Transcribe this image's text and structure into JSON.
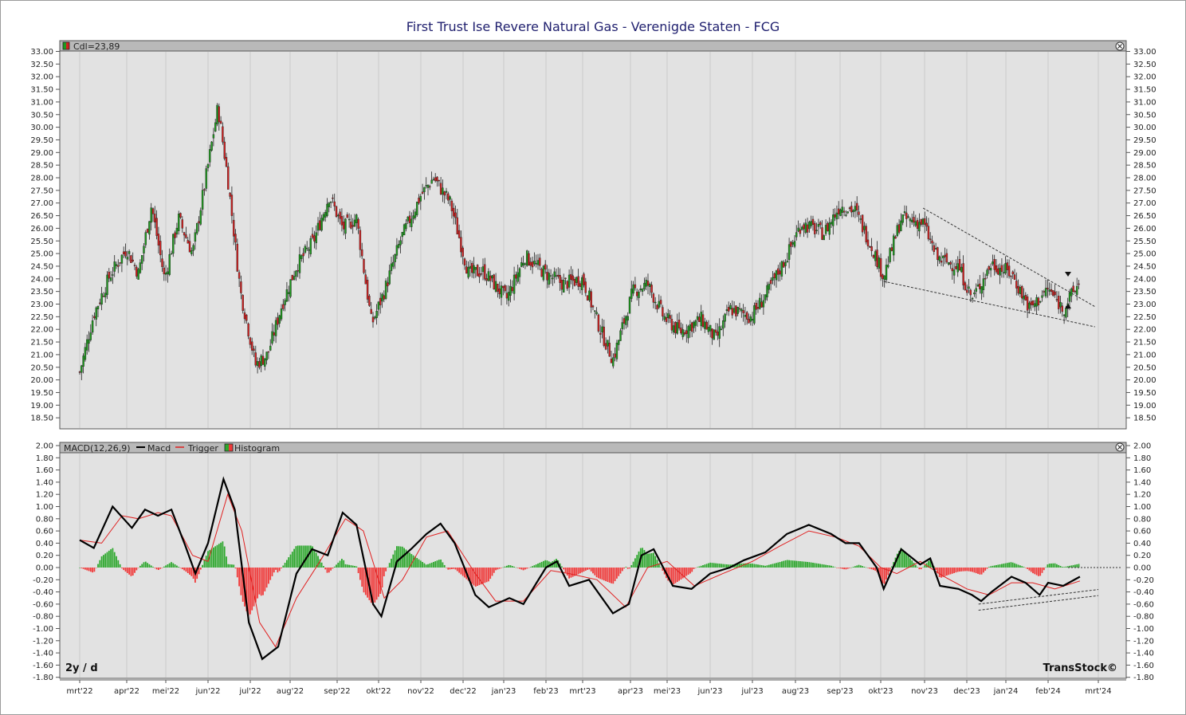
{
  "window": {
    "title": "First Trust Ise Revere Natural Gas - Verenigde Staten - FCG"
  },
  "price_panel": {
    "legend": "Cdl=23,89",
    "close_icon": "close-circle-icon"
  },
  "macd_panel": {
    "legend_prefix": "MACD(12,26,9)",
    "legend_macd": "Macd",
    "legend_trigger": "Trigger",
    "legend_histogram": "Histogram",
    "period_label": "2y / d",
    "brand": "TransStock©",
    "close_icon": "close-circle-icon"
  },
  "colors": {
    "title": "#1f1f6e",
    "panel_bg": "#e2e2e2",
    "grid": "#c8c8c8",
    "up": "#1e9a1e",
    "down": "#d22020",
    "macd": "#000000",
    "trigger": "#e02020",
    "hist_up": "#2ea82e",
    "hist_down": "#f03a3a"
  },
  "chart_data": [
    {
      "type": "candlestick",
      "title": "First Trust Ise Revere Natural Gas - Verenigde Staten - FCG",
      "x_ticks": [
        "mrt'22",
        "apr'22",
        "mei'22",
        "jun'22",
        "jul'22",
        "aug'22",
        "sep'22",
        "okt'22",
        "nov'22",
        "dec'22",
        "jan'23",
        "feb'23",
        "mrt'23",
        "apr'23",
        "mei'23",
        "jun'23",
        "jul'23",
        "aug'23",
        "sep'23",
        "okt'23",
        "nov'23",
        "dec'23",
        "jan'24",
        "feb'24",
        "mrt'24"
      ],
      "y_ticks": [
        "33.00",
        "32.50",
        "32.00",
        "31.50",
        "31.00",
        "30.50",
        "30.00",
        "29.50",
        "29.00",
        "28.50",
        "28.00",
        "27.50",
        "27.00",
        "26.50",
        "26.00",
        "25.50",
        "25.00",
        "24.50",
        "24.00",
        "23.50",
        "23.00",
        "22.50",
        "22.00",
        "21.50",
        "21.00",
        "20.50",
        "20.00",
        "19.50",
        "19.00",
        "18.50"
      ],
      "ylim": [
        18.0,
        33.25
      ],
      "last_close": 23.89,
      "approx_closes_by_month": [
        {
          "date": "2022-03-01",
          "close": 20.3
        },
        {
          "date": "2022-03-10",
          "close": 22.6
        },
        {
          "date": "2022-03-20",
          "close": 24.1
        },
        {
          "date": "2022-03-31",
          "close": 25.2
        },
        {
          "date": "2022-04-10",
          "close": 24.2
        },
        {
          "date": "2022-04-20",
          "close": 26.9
        },
        {
          "date": "2022-04-30",
          "close": 24.0
        },
        {
          "date": "2022-05-10",
          "close": 26.4
        },
        {
          "date": "2022-05-20",
          "close": 25.0
        },
        {
          "date": "2022-05-31",
          "close": 28.5
        },
        {
          "date": "2022-06-08",
          "close": 30.8
        },
        {
          "date": "2022-06-15",
          "close": 28.0
        },
        {
          "date": "2022-06-24",
          "close": 23.5
        },
        {
          "date": "2022-07-05",
          "close": 20.6
        },
        {
          "date": "2022-07-14",
          "close": 21.0
        },
        {
          "date": "2022-07-25",
          "close": 23.0
        },
        {
          "date": "2022-08-05",
          "close": 24.5
        },
        {
          "date": "2022-08-16",
          "close": 25.5
        },
        {
          "date": "2022-08-26",
          "close": 27.3
        },
        {
          "date": "2022-09-05",
          "close": 26.0
        },
        {
          "date": "2022-09-15",
          "close": 26.4
        },
        {
          "date": "2022-09-26",
          "close": 22.2
        },
        {
          "date": "2022-10-05",
          "close": 23.5
        },
        {
          "date": "2022-10-17",
          "close": 25.6
        },
        {
          "date": "2022-10-31",
          "close": 27.3
        },
        {
          "date": "2022-11-10",
          "close": 28.0
        },
        {
          "date": "2022-11-22",
          "close": 27.0
        },
        {
          "date": "2022-12-05",
          "close": 24.2
        },
        {
          "date": "2022-12-16",
          "close": 24.3
        },
        {
          "date": "2023-01-03",
          "close": 23.2
        },
        {
          "date": "2023-01-16",
          "close": 24.9
        },
        {
          "date": "2023-02-01",
          "close": 24.2
        },
        {
          "date": "2023-02-15",
          "close": 23.8
        },
        {
          "date": "2023-03-01",
          "close": 24.0
        },
        {
          "date": "2023-03-12",
          "close": 22.0
        },
        {
          "date": "2023-03-20",
          "close": 20.8
        },
        {
          "date": "2023-04-03",
          "close": 23.5
        },
        {
          "date": "2023-04-15",
          "close": 23.8
        },
        {
          "date": "2023-04-28",
          "close": 22.5
        },
        {
          "date": "2023-05-10",
          "close": 21.9
        },
        {
          "date": "2023-05-25",
          "close": 22.4
        },
        {
          "date": "2023-06-05",
          "close": 21.6
        },
        {
          "date": "2023-06-15",
          "close": 22.8
        },
        {
          "date": "2023-06-30",
          "close": 22.5
        },
        {
          "date": "2023-07-12",
          "close": 23.5
        },
        {
          "date": "2023-07-25",
          "close": 24.9
        },
        {
          "date": "2023-08-05",
          "close": 26.2
        },
        {
          "date": "2023-08-20",
          "close": 25.8
        },
        {
          "date": "2023-08-31",
          "close": 26.9
        },
        {
          "date": "2023-09-12",
          "close": 26.7
        },
        {
          "date": "2023-09-25",
          "close": 25.2
        },
        {
          "date": "2023-10-03",
          "close": 24.1
        },
        {
          "date": "2023-10-15",
          "close": 26.4
        },
        {
          "date": "2023-10-30",
          "close": 26.2
        },
        {
          "date": "2023-11-10",
          "close": 24.8
        },
        {
          "date": "2023-11-25",
          "close": 24.5
        },
        {
          "date": "2023-12-05",
          "close": 23.2
        },
        {
          "date": "2023-12-20",
          "close": 24.6
        },
        {
          "date": "2024-01-05",
          "close": 24.2
        },
        {
          "date": "2024-01-18",
          "close": 22.8
        },
        {
          "date": "2024-02-01",
          "close": 23.6
        },
        {
          "date": "2024-02-10",
          "close": 22.8
        },
        {
          "date": "2024-02-20",
          "close": 23.89
        }
      ],
      "trendlines": [
        {
          "from": {
            "date": "2023-10-30",
            "value": 26.8
          },
          "to": {
            "date": "2024-02-29",
            "value": 22.9
          }
        },
        {
          "from": {
            "date": "2023-10-03",
            "value": 23.9
          },
          "to": {
            "date": "2024-02-29",
            "value": 22.1
          }
        }
      ]
    },
    {
      "type": "line",
      "title": "MACD(12,26,9)",
      "y_ticks": [
        "2.00",
        "1.80",
        "1.60",
        "1.40",
        "1.20",
        "1.00",
        "0.80",
        "0.60",
        "0.40",
        "0.20",
        "0.00",
        "-0.20",
        "-0.40",
        "-0.60",
        "-0.80",
        "-1.00",
        "-1.20",
        "-1.40",
        "-1.60",
        "-1.80"
      ],
      "ylim": [
        -1.8,
        2.0
      ],
      "series": [
        {
          "name": "Macd",
          "color": "#000000",
          "values": [
            {
              "date": "2022-03-01",
              "value": 0.45
            },
            {
              "date": "2022-03-10",
              "value": 0.32
            },
            {
              "date": "2022-03-22",
              "value": 1.0
            },
            {
              "date": "2022-04-05",
              "value": 0.65
            },
            {
              "date": "2022-04-15",
              "value": 0.95
            },
            {
              "date": "2022-04-25",
              "value": 0.85
            },
            {
              "date": "2022-05-05",
              "value": 0.95
            },
            {
              "date": "2022-05-15",
              "value": 0.35
            },
            {
              "date": "2022-05-22",
              "value": -0.1
            },
            {
              "date": "2022-05-31",
              "value": 0.4
            },
            {
              "date": "2022-06-12",
              "value": 1.45
            },
            {
              "date": "2022-06-20",
              "value": 0.95
            },
            {
              "date": "2022-06-30",
              "value": -0.9
            },
            {
              "date": "2022-07-10",
              "value": -1.5
            },
            {
              "date": "2022-07-22",
              "value": -1.3
            },
            {
              "date": "2022-08-05",
              "value": -0.1
            },
            {
              "date": "2022-08-15",
              "value": 0.3
            },
            {
              "date": "2022-08-25",
              "value": 0.2
            },
            {
              "date": "2022-09-05",
              "value": 0.9
            },
            {
              "date": "2022-09-15",
              "value": 0.7
            },
            {
              "date": "2022-09-27",
              "value": -0.6
            },
            {
              "date": "2022-10-03",
              "value": -0.8
            },
            {
              "date": "2022-10-14",
              "value": 0.1
            },
            {
              "date": "2022-10-24",
              "value": 0.3
            },
            {
              "date": "2022-11-05",
              "value": 0.55
            },
            {
              "date": "2022-11-15",
              "value": 0.72
            },
            {
              "date": "2022-11-25",
              "value": 0.4
            },
            {
              "date": "2022-12-10",
              "value": -0.45
            },
            {
              "date": "2022-12-20",
              "value": -0.65
            },
            {
              "date": "2023-01-05",
              "value": -0.5
            },
            {
              "date": "2023-01-15",
              "value": -0.6
            },
            {
              "date": "2023-02-01",
              "value": 0.0
            },
            {
              "date": "2023-02-10",
              "value": 0.1
            },
            {
              "date": "2023-02-20",
              "value": -0.3
            },
            {
              "date": "2023-03-05",
              "value": -0.2
            },
            {
              "date": "2023-03-20",
              "value": -0.75
            },
            {
              "date": "2023-03-30",
              "value": -0.6
            },
            {
              "date": "2023-04-10",
              "value": 0.2
            },
            {
              "date": "2023-04-20",
              "value": 0.3
            },
            {
              "date": "2023-05-05",
              "value": -0.3
            },
            {
              "date": "2023-05-18",
              "value": -0.35
            },
            {
              "date": "2023-06-01",
              "value": -0.1
            },
            {
              "date": "2023-06-15",
              "value": 0.0
            },
            {
              "date": "2023-06-25",
              "value": 0.12
            },
            {
              "date": "2023-07-10",
              "value": 0.25
            },
            {
              "date": "2023-07-25",
              "value": 0.55
            },
            {
              "date": "2023-08-10",
              "value": 0.7
            },
            {
              "date": "2023-08-25",
              "value": 0.55
            },
            {
              "date": "2023-09-05",
              "value": 0.4
            },
            {
              "date": "2023-09-15",
              "value": 0.4
            },
            {
              "date": "2023-09-28",
              "value": 0.0
            },
            {
              "date": "2023-10-03",
              "value": -0.35
            },
            {
              "date": "2023-10-15",
              "value": 0.3
            },
            {
              "date": "2023-10-28",
              "value": 0.05
            },
            {
              "date": "2023-11-05",
              "value": 0.15
            },
            {
              "date": "2023-11-12",
              "value": -0.3
            },
            {
              "date": "2023-11-25",
              "value": -0.35
            },
            {
              "date": "2023-12-05",
              "value": -0.45
            },
            {
              "date": "2023-12-12",
              "value": -0.55
            },
            {
              "date": "2023-12-20",
              "value": -0.4
            },
            {
              "date": "2024-01-05",
              "value": -0.15
            },
            {
              "date": "2024-01-15",
              "value": -0.25
            },
            {
              "date": "2024-01-25",
              "value": -0.45
            },
            {
              "date": "2024-02-01",
              "value": -0.25
            },
            {
              "date": "2024-02-10",
              "value": -0.3
            },
            {
              "date": "2024-02-20",
              "value": -0.15
            }
          ]
        },
        {
          "name": "Trigger",
          "color": "#e02020",
          "values": [
            {
              "date": "2022-03-01",
              "value": 0.45
            },
            {
              "date": "2022-03-15",
              "value": 0.4
            },
            {
              "date": "2022-03-28",
              "value": 0.85
            },
            {
              "date": "2022-04-10",
              "value": 0.8
            },
            {
              "date": "2022-04-25",
              "value": 0.9
            },
            {
              "date": "2022-05-05",
              "value": 0.85
            },
            {
              "date": "2022-05-20",
              "value": 0.2
            },
            {
              "date": "2022-05-31",
              "value": 0.1
            },
            {
              "date": "2022-06-15",
              "value": 1.2
            },
            {
              "date": "2022-06-25",
              "value": 0.6
            },
            {
              "date": "2022-07-08",
              "value": -0.9
            },
            {
              "date": "2022-07-20",
              "value": -1.3
            },
            {
              "date": "2022-08-05",
              "value": -0.5
            },
            {
              "date": "2022-08-20",
              "value": 0.1
            },
            {
              "date": "2022-09-07",
              "value": 0.8
            },
            {
              "date": "2022-09-20",
              "value": 0.6
            },
            {
              "date": "2022-10-05",
              "value": -0.5
            },
            {
              "date": "2022-10-18",
              "value": -0.2
            },
            {
              "date": "2022-11-05",
              "value": 0.5
            },
            {
              "date": "2022-11-20",
              "value": 0.6
            },
            {
              "date": "2022-12-10",
              "value": -0.1
            },
            {
              "date": "2022-12-25",
              "value": -0.55
            },
            {
              "date": "2023-01-15",
              "value": -0.55
            },
            {
              "date": "2023-02-05",
              "value": -0.05
            },
            {
              "date": "2023-02-20",
              "value": -0.1
            },
            {
              "date": "2023-03-10",
              "value": -0.2
            },
            {
              "date": "2023-03-28",
              "value": -0.65
            },
            {
              "date": "2023-04-15",
              "value": 0.0
            },
            {
              "date": "2023-05-01",
              "value": 0.1
            },
            {
              "date": "2023-05-20",
              "value": -0.3
            },
            {
              "date": "2023-06-10",
              "value": -0.1
            },
            {
              "date": "2023-07-01",
              "value": 0.1
            },
            {
              "date": "2023-07-20",
              "value": 0.35
            },
            {
              "date": "2023-08-10",
              "value": 0.6
            },
            {
              "date": "2023-08-28",
              "value": 0.5
            },
            {
              "date": "2023-09-15",
              "value": 0.35
            },
            {
              "date": "2023-10-01",
              "value": 0.0
            },
            {
              "date": "2023-10-12",
              "value": -0.1
            },
            {
              "date": "2023-10-28",
              "value": 0.1
            },
            {
              "date": "2023-11-15",
              "value": -0.15
            },
            {
              "date": "2023-12-01",
              "value": -0.35
            },
            {
              "date": "2023-12-18",
              "value": -0.45
            },
            {
              "date": "2024-01-05",
              "value": -0.25
            },
            {
              "date": "2024-01-20",
              "value": -0.25
            },
            {
              "date": "2024-02-05",
              "value": -0.35
            },
            {
              "date": "2024-02-20",
              "value": -0.22
            }
          ]
        }
      ],
      "trendlines": [
        {
          "from": {
            "date": "2023-12-10",
            "value": -0.6
          },
          "to": {
            "date": "2024-03-01",
            "value": -0.36
          }
        },
        {
          "from": {
            "date": "2023-12-10",
            "value": -0.7
          },
          "to": {
            "date": "2024-03-01",
            "value": -0.46
          }
        }
      ]
    }
  ]
}
